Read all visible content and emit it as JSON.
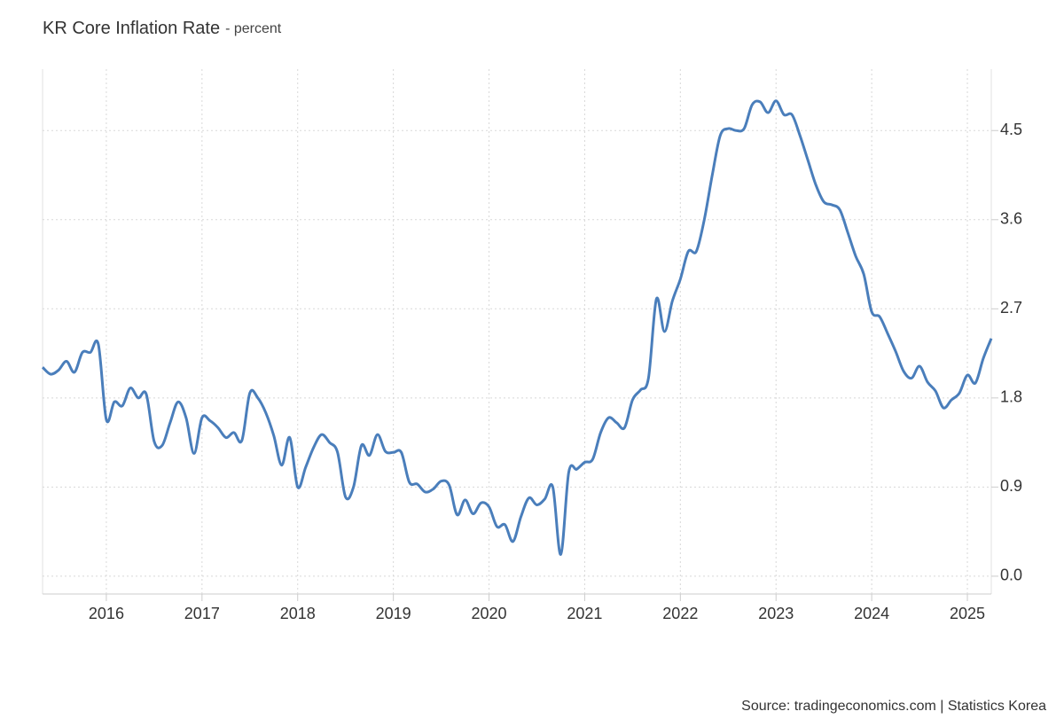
{
  "chart_data": {
    "type": "line",
    "title": "KR Core Inflation Rate",
    "subtitle": "- percent",
    "source": "Source: tradingeconomics.com | Statistics Korea",
    "x": [
      "2015-05",
      "2015-06",
      "2015-07",
      "2015-08",
      "2015-09",
      "2015-10",
      "2015-11",
      "2015-12",
      "2016-01",
      "2016-02",
      "2016-03",
      "2016-04",
      "2016-05",
      "2016-06",
      "2016-07",
      "2016-08",
      "2016-09",
      "2016-10",
      "2016-11",
      "2016-12",
      "2017-01",
      "2017-02",
      "2017-03",
      "2017-04",
      "2017-05",
      "2017-06",
      "2017-07",
      "2017-08",
      "2017-09",
      "2017-10",
      "2017-11",
      "2017-12",
      "2018-01",
      "2018-02",
      "2018-03",
      "2018-04",
      "2018-05",
      "2018-06",
      "2018-07",
      "2018-08",
      "2018-09",
      "2018-10",
      "2018-11",
      "2018-12",
      "2019-01",
      "2019-02",
      "2019-03",
      "2019-04",
      "2019-05",
      "2019-06",
      "2019-07",
      "2019-08",
      "2019-09",
      "2019-10",
      "2019-11",
      "2019-12",
      "2020-01",
      "2020-02",
      "2020-03",
      "2020-04",
      "2020-05",
      "2020-06",
      "2020-07",
      "2020-08",
      "2020-09",
      "2020-10",
      "2020-11",
      "2020-12",
      "2021-01",
      "2021-02",
      "2021-03",
      "2021-04",
      "2021-05",
      "2021-06",
      "2021-07",
      "2021-08",
      "2021-09",
      "2021-10",
      "2021-11",
      "2021-12",
      "2022-01",
      "2022-02",
      "2022-03",
      "2022-04",
      "2022-05",
      "2022-06",
      "2022-07",
      "2022-08",
      "2022-09",
      "2022-10",
      "2022-11",
      "2022-12",
      "2023-01",
      "2023-02",
      "2023-03",
      "2023-04",
      "2023-05",
      "2023-06",
      "2023-07",
      "2023-08",
      "2023-09",
      "2023-10",
      "2023-11",
      "2023-12",
      "2024-01",
      "2024-02",
      "2024-03",
      "2024-04",
      "2024-05",
      "2024-06",
      "2024-07",
      "2024-08",
      "2024-09",
      "2024-10",
      "2024-11",
      "2024-12",
      "2025-01",
      "2025-02",
      "2025-03",
      "2025-04"
    ],
    "series": [
      {
        "name": "KR Core Inflation Rate",
        "color": "#4a7ebb",
        "values": [
          2.11,
          2.04,
          2.08,
          2.17,
          2.06,
          2.26,
          2.26,
          2.34,
          1.58,
          1.76,
          1.72,
          1.9,
          1.8,
          1.84,
          1.36,
          1.32,
          1.55,
          1.76,
          1.6,
          1.24,
          1.6,
          1.57,
          1.5,
          1.4,
          1.45,
          1.37,
          1.85,
          1.8,
          1.65,
          1.42,
          1.12,
          1.4,
          0.9,
          1.1,
          1.3,
          1.43,
          1.35,
          1.25,
          0.8,
          0.9,
          1.32,
          1.22,
          1.43,
          1.26,
          1.25,
          1.25,
          0.95,
          0.93,
          0.85,
          0.88,
          0.96,
          0.92,
          0.62,
          0.77,
          0.63,
          0.74,
          0.7,
          0.5,
          0.52,
          0.35,
          0.6,
          0.79,
          0.72,
          0.78,
          0.9,
          0.22,
          1.05,
          1.08,
          1.15,
          1.18,
          1.45,
          1.6,
          1.55,
          1.5,
          1.78,
          1.88,
          2.0,
          2.8,
          2.47,
          2.78,
          3.0,
          3.28,
          3.28,
          3.6,
          4.05,
          4.45,
          4.52,
          4.5,
          4.52,
          4.76,
          4.79,
          4.68,
          4.8,
          4.66,
          4.66,
          4.45,
          4.2,
          3.95,
          3.78,
          3.75,
          3.7,
          3.47,
          3.23,
          3.05,
          2.67,
          2.62,
          2.45,
          2.27,
          2.07,
          2.0,
          2.12,
          1.96,
          1.87,
          1.7,
          1.78,
          1.85,
          2.03,
          1.95,
          2.2,
          2.4
        ]
      }
    ],
    "xlim": [
      "2015-05",
      "2025-04"
    ],
    "xticks": [
      2016,
      2017,
      2018,
      2019,
      2020,
      2021,
      2022,
      2023,
      2024,
      2025
    ],
    "ylim": [
      -0.18,
      5.12
    ],
    "yticks": [
      {
        "value": 0,
        "label": "0.0"
      },
      0.9,
      1.8,
      2.7,
      3.6,
      4.5
    ],
    "grid": true
  }
}
